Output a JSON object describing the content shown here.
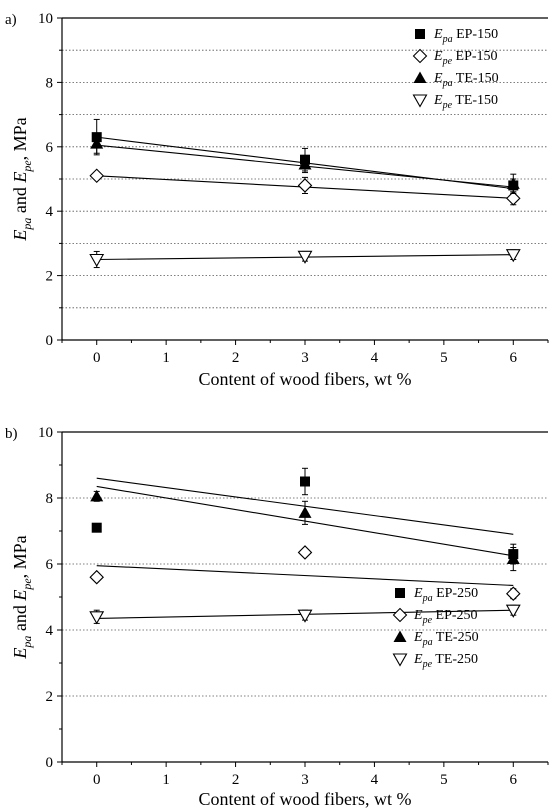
{
  "chart_data": [
    {
      "type": "scatter",
      "panel_label": "a)",
      "xlabel": "Content of wood fibers, wt %",
      "ylabel": {
        "e1": "E",
        "s1": "pa",
        "mid": " and ",
        "e2": "E",
        "s2": "pe",
        "end": ", MPa"
      },
      "xlim": [
        -0.5,
        6.5
      ],
      "ylim": [
        0,
        10
      ],
      "xticks": [
        "0",
        "1",
        "2",
        "3",
        "4",
        "5",
        "6"
      ],
      "yticks": [
        "0",
        "2",
        "4",
        "6",
        "8",
        "10"
      ],
      "grid": "dotted horizontal at every 1 MPa",
      "legend_position": "top-right",
      "series": [
        {
          "legend_e": "E",
          "legend_sub": "pa",
          "legend_text": " EP-150",
          "marker": "square",
          "x": [
            0,
            3,
            6
          ],
          "y": [
            6.3,
            5.6,
            4.8
          ],
          "err": [
            0.55,
            0.35,
            0.2
          ],
          "fit": [
            6.3,
            4.7
          ]
        },
        {
          "legend_e": "E",
          "legend_sub": "pe",
          "legend_text": " EP-150",
          "marker": "diamond",
          "x": [
            0,
            3,
            6
          ],
          "y": [
            5.1,
            4.8,
            4.4
          ],
          "err": [
            0.1,
            0.25,
            0.2
          ],
          "fit": [
            5.1,
            4.4
          ]
        },
        {
          "legend_e": "E",
          "legend_sub": "pa",
          "legend_text": " TE-150",
          "marker": "triangle-up",
          "x": [
            0,
            3,
            6
          ],
          "y": [
            6.1,
            5.45,
            4.85
          ],
          "err": [
            0.3,
            0.25,
            0.3
          ],
          "fit": [
            6.05,
            4.75
          ]
        },
        {
          "legend_e": "E",
          "legend_sub": "pe",
          "legend_text": " TE-150",
          "marker": "triangle-down",
          "x": [
            0,
            3,
            6
          ],
          "y": [
            2.5,
            2.6,
            2.65
          ],
          "err": [
            0.25,
            0.15,
            0.15
          ],
          "fit": [
            2.5,
            2.65
          ]
        }
      ]
    },
    {
      "type": "scatter",
      "panel_label": "b)",
      "xlabel": "Content of wood fibers, wt %",
      "ylabel": {
        "e1": "E",
        "s1": "pa",
        "mid": " and ",
        "e2": "E",
        "s2": "pe",
        "end": ", MPa"
      },
      "xlim": [
        -0.5,
        6.5
      ],
      "ylim": [
        0,
        10
      ],
      "xticks": [
        "0",
        "1",
        "2",
        "3",
        "4",
        "5",
        "6"
      ],
      "yticks": [
        "0",
        "2",
        "4",
        "6",
        "8",
        "10"
      ],
      "grid": "dotted horizontal at 2, 4, 6, 8 MPa",
      "legend_position": "bottom-right",
      "series": [
        {
          "legend_e": "E",
          "legend_sub": "pa",
          "legend_text": " EP-250",
          "marker": "square",
          "x": [
            0,
            3,
            6
          ],
          "y": [
            7.1,
            8.5,
            6.3
          ],
          "err": [
            0.1,
            0.4,
            0.3
          ],
          "fit": [
            8.6,
            6.9
          ]
        },
        {
          "legend_e": "E",
          "legend_sub": "pe",
          "legend_text": " EP-250",
          "marker": "diamond",
          "x": [
            0,
            3,
            6
          ],
          "y": [
            5.6,
            6.35,
            5.1
          ],
          "err": [
            0.1,
            0.1,
            0.15
          ],
          "fit": [
            5.95,
            5.35
          ]
        },
        {
          "legend_e": "E",
          "legend_sub": "pa",
          "legend_text": " TE-250",
          "marker": "triangle-up",
          "x": [
            0,
            3,
            6
          ],
          "y": [
            8.05,
            7.55,
            6.15
          ],
          "err": [
            0.15,
            0.35,
            0.35
          ],
          "fit": [
            8.35,
            6.25
          ]
        },
        {
          "legend_e": "E",
          "legend_sub": "pe",
          "legend_text": " TE-250",
          "marker": "triangle-down",
          "x": [
            0,
            3,
            6
          ],
          "y": [
            4.4,
            4.45,
            4.6
          ],
          "err": [
            0.2,
            0.15,
            0.15
          ],
          "fit": [
            4.35,
            4.6
          ]
        }
      ]
    }
  ]
}
